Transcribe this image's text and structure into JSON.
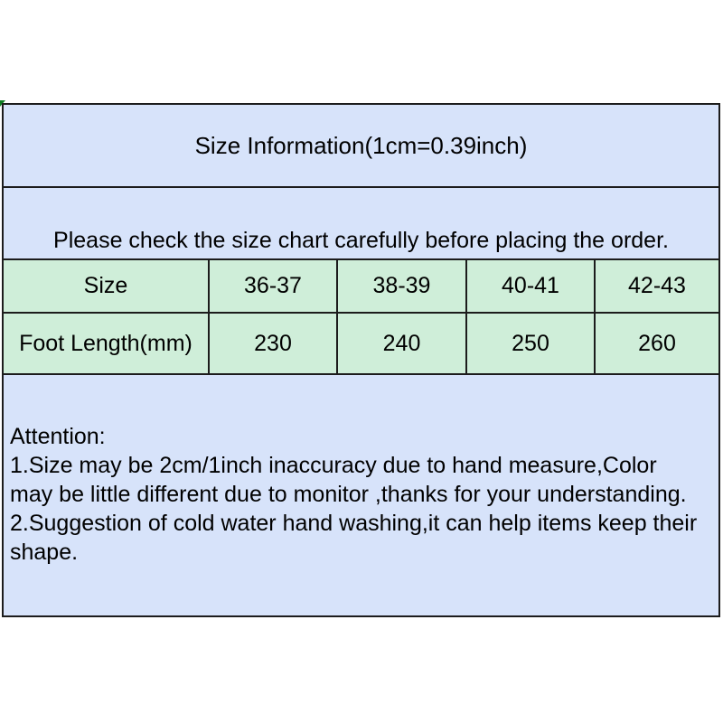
{
  "colors": {
    "page_bg": "#ffffff",
    "blue_bg": "#d7e3fa",
    "green_bg": "#cfeed9",
    "border": "#1c1c1c",
    "text": "#000000",
    "corner_mark": "#0e7d22"
  },
  "header": {
    "title": "Size Information(1cm=0.39inch)",
    "notice": "Please check the size chart carefully before placing the order."
  },
  "chart_data": {
    "type": "table",
    "title": "Size Information(1cm=0.39inch)",
    "header": [
      "Size",
      "36-37",
      "38-39",
      "40-41",
      "42-43"
    ],
    "rows": [
      [
        "Foot Length(mm)",
        "230",
        "240",
        "250",
        "260"
      ]
    ]
  },
  "attention": {
    "heading": "Attention:",
    "lines": [
      "1.Size may be 2cm/1inch inaccuracy due to hand measure,Color",
      "may be little different due to monitor ,thanks for your understanding.",
      "2.Suggestion of cold water hand washing,it can help items keep their",
      "shape."
    ]
  }
}
